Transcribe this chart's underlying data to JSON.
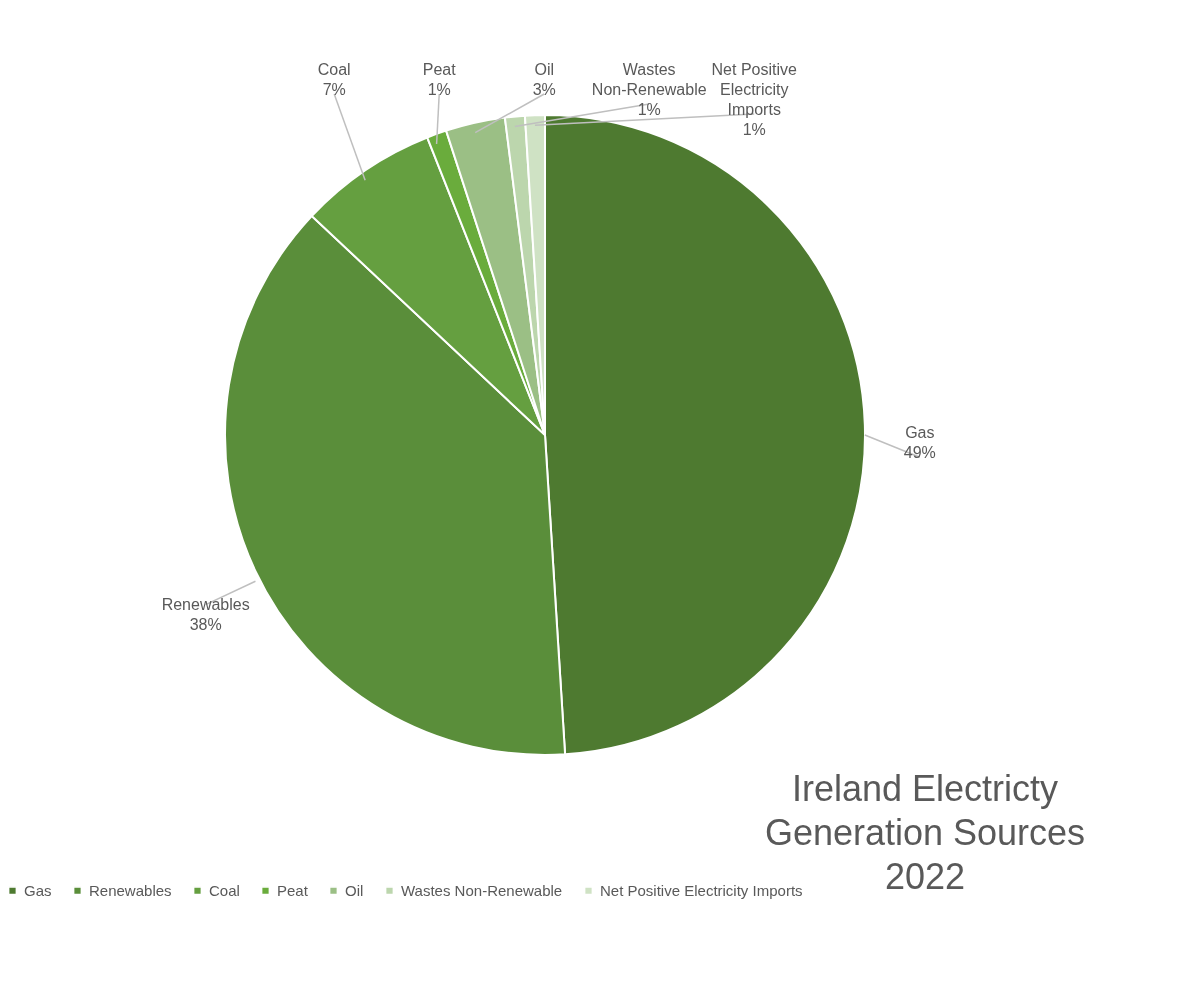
{
  "chart_data": {
    "type": "pie",
    "title": "Ireland Electricty Generation Sources 2022",
    "categories": [
      "Gas",
      "Renewables",
      "Coal",
      "Peat",
      "Oil",
      "Wastes Non-Renewable",
      "Net Positive Electricity Imports"
    ],
    "values": [
      49,
      38,
      7,
      1,
      3,
      1,
      1
    ],
    "value_labels": [
      "49%",
      "38%",
      "7%",
      "1%",
      "3%",
      "1%",
      "1%"
    ],
    "colors": [
      "#4e7a30",
      "#5a8e3a",
      "#659f40",
      "#6aac3c",
      "#9bbf85",
      "#bcd6ad",
      "#cfe2c4"
    ],
    "legend": "bottom"
  }
}
